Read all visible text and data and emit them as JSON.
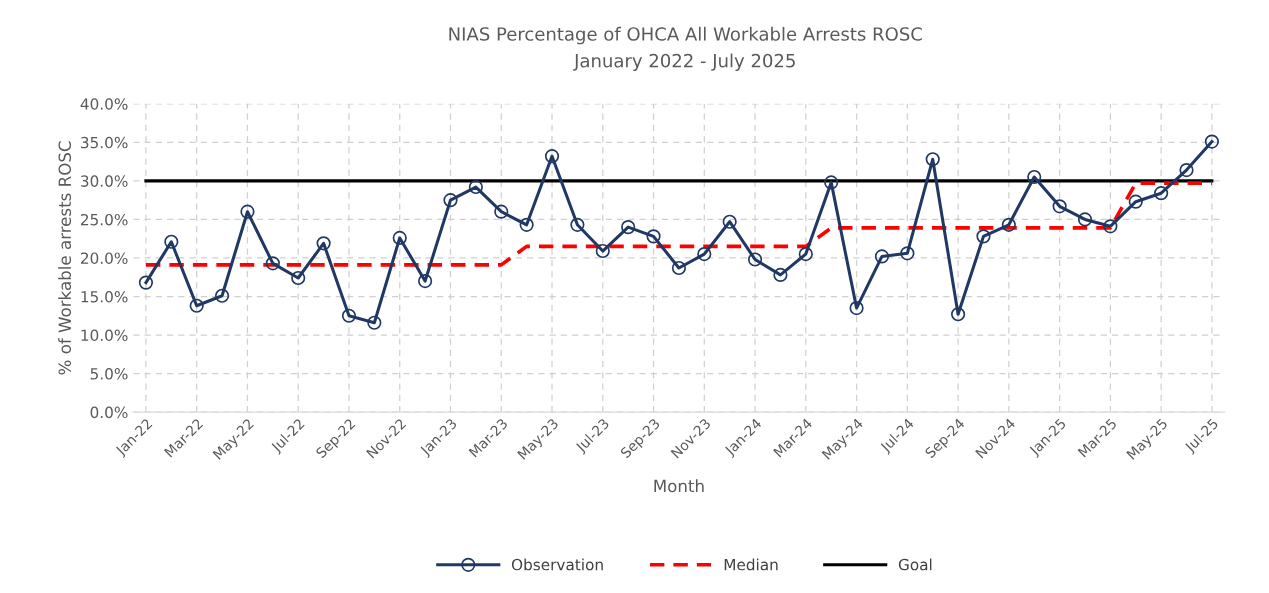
{
  "chart_data": {
    "type": "line",
    "title": "NIAS Percentage of OHCA All Workable Arrests ROSC",
    "subtitle": "January 2022 - July 2025",
    "xlabel": "Month",
    "ylabel": "% of Workable arrests ROSC",
    "categories": [
      "Jan-22",
      null,
      "Mar-22",
      null,
      "May-22",
      null,
      "Jul-22",
      null,
      "Sep-22",
      null,
      "Nov-22",
      null,
      "Jan-23",
      null,
      "Mar-23",
      null,
      "May-23",
      null,
      "Jul-23",
      null,
      "Sep-23",
      null,
      "Nov-23",
      null,
      "Jan-24",
      null,
      "Mar-24",
      null,
      "May-24",
      null,
      "Jul-24",
      null,
      "Sep-24",
      null,
      "Nov-24",
      null,
      "Jan-25",
      null,
      "Mar-25",
      null,
      "May-25",
      null,
      "Jul-25"
    ],
    "series": [
      {
        "name": "Observation",
        "color": "#203864",
        "marker": "circle",
        "line_style": "solid",
        "values": [
          16.8,
          22.1,
          13.8,
          15.1,
          26.0,
          19.3,
          17.4,
          21.9,
          12.5,
          11.6,
          22.6,
          17.0,
          27.5,
          29.2,
          26.0,
          24.3,
          33.2,
          24.3,
          20.9,
          24.0,
          22.8,
          18.7,
          20.5,
          24.7,
          19.8,
          17.8,
          20.5,
          29.8,
          13.5,
          20.2,
          20.6,
          32.8,
          12.7,
          22.8,
          24.3,
          30.5,
          26.7,
          25.0,
          24.1,
          27.3,
          28.4,
          31.4,
          35.1
        ]
      },
      {
        "name": "Median",
        "color": "#ff0000",
        "marker": "none",
        "line_style": "dashed",
        "values": [
          19.1,
          19.1,
          19.1,
          19.1,
          19.1,
          19.1,
          19.1,
          19.1,
          19.1,
          19.1,
          19.1,
          19.1,
          19.1,
          19.1,
          19.1,
          21.5,
          21.5,
          21.5,
          21.5,
          21.5,
          21.5,
          21.5,
          21.5,
          21.5,
          21.5,
          21.5,
          21.5,
          23.9,
          23.9,
          23.9,
          23.9,
          23.9,
          23.9,
          23.9,
          23.9,
          23.9,
          23.9,
          23.9,
          23.9,
          29.7,
          29.7,
          29.7,
          29.7
        ]
      },
      {
        "name": "Goal",
        "color": "#000000",
        "marker": "none",
        "line_style": "solid",
        "values": [
          30,
          30,
          30,
          30,
          30,
          30,
          30,
          30,
          30,
          30,
          30,
          30,
          30,
          30,
          30,
          30,
          30,
          30,
          30,
          30,
          30,
          30,
          30,
          30,
          30,
          30,
          30,
          30,
          30,
          30,
          30,
          30,
          30,
          30,
          30,
          30,
          30,
          30,
          30,
          30,
          30,
          30,
          30
        ]
      }
    ],
    "ylim": [
      0,
      40
    ],
    "yticks": [
      {
        "value": 0,
        "label": "0.0%"
      },
      {
        "value": 5,
        "label": "5.0%"
      },
      {
        "value": 10,
        "label": "10.0%"
      },
      {
        "value": 15,
        "label": "15.0%"
      },
      {
        "value": 20,
        "label": "20.0%"
      },
      {
        "value": 25,
        "label": "25.0%"
      },
      {
        "value": 30,
        "label": "30.0%"
      },
      {
        "value": 35,
        "label": "35.0%"
      },
      {
        "value": 40,
        "label": "40.0%"
      }
    ],
    "grid": true,
    "legend": "bottom"
  }
}
